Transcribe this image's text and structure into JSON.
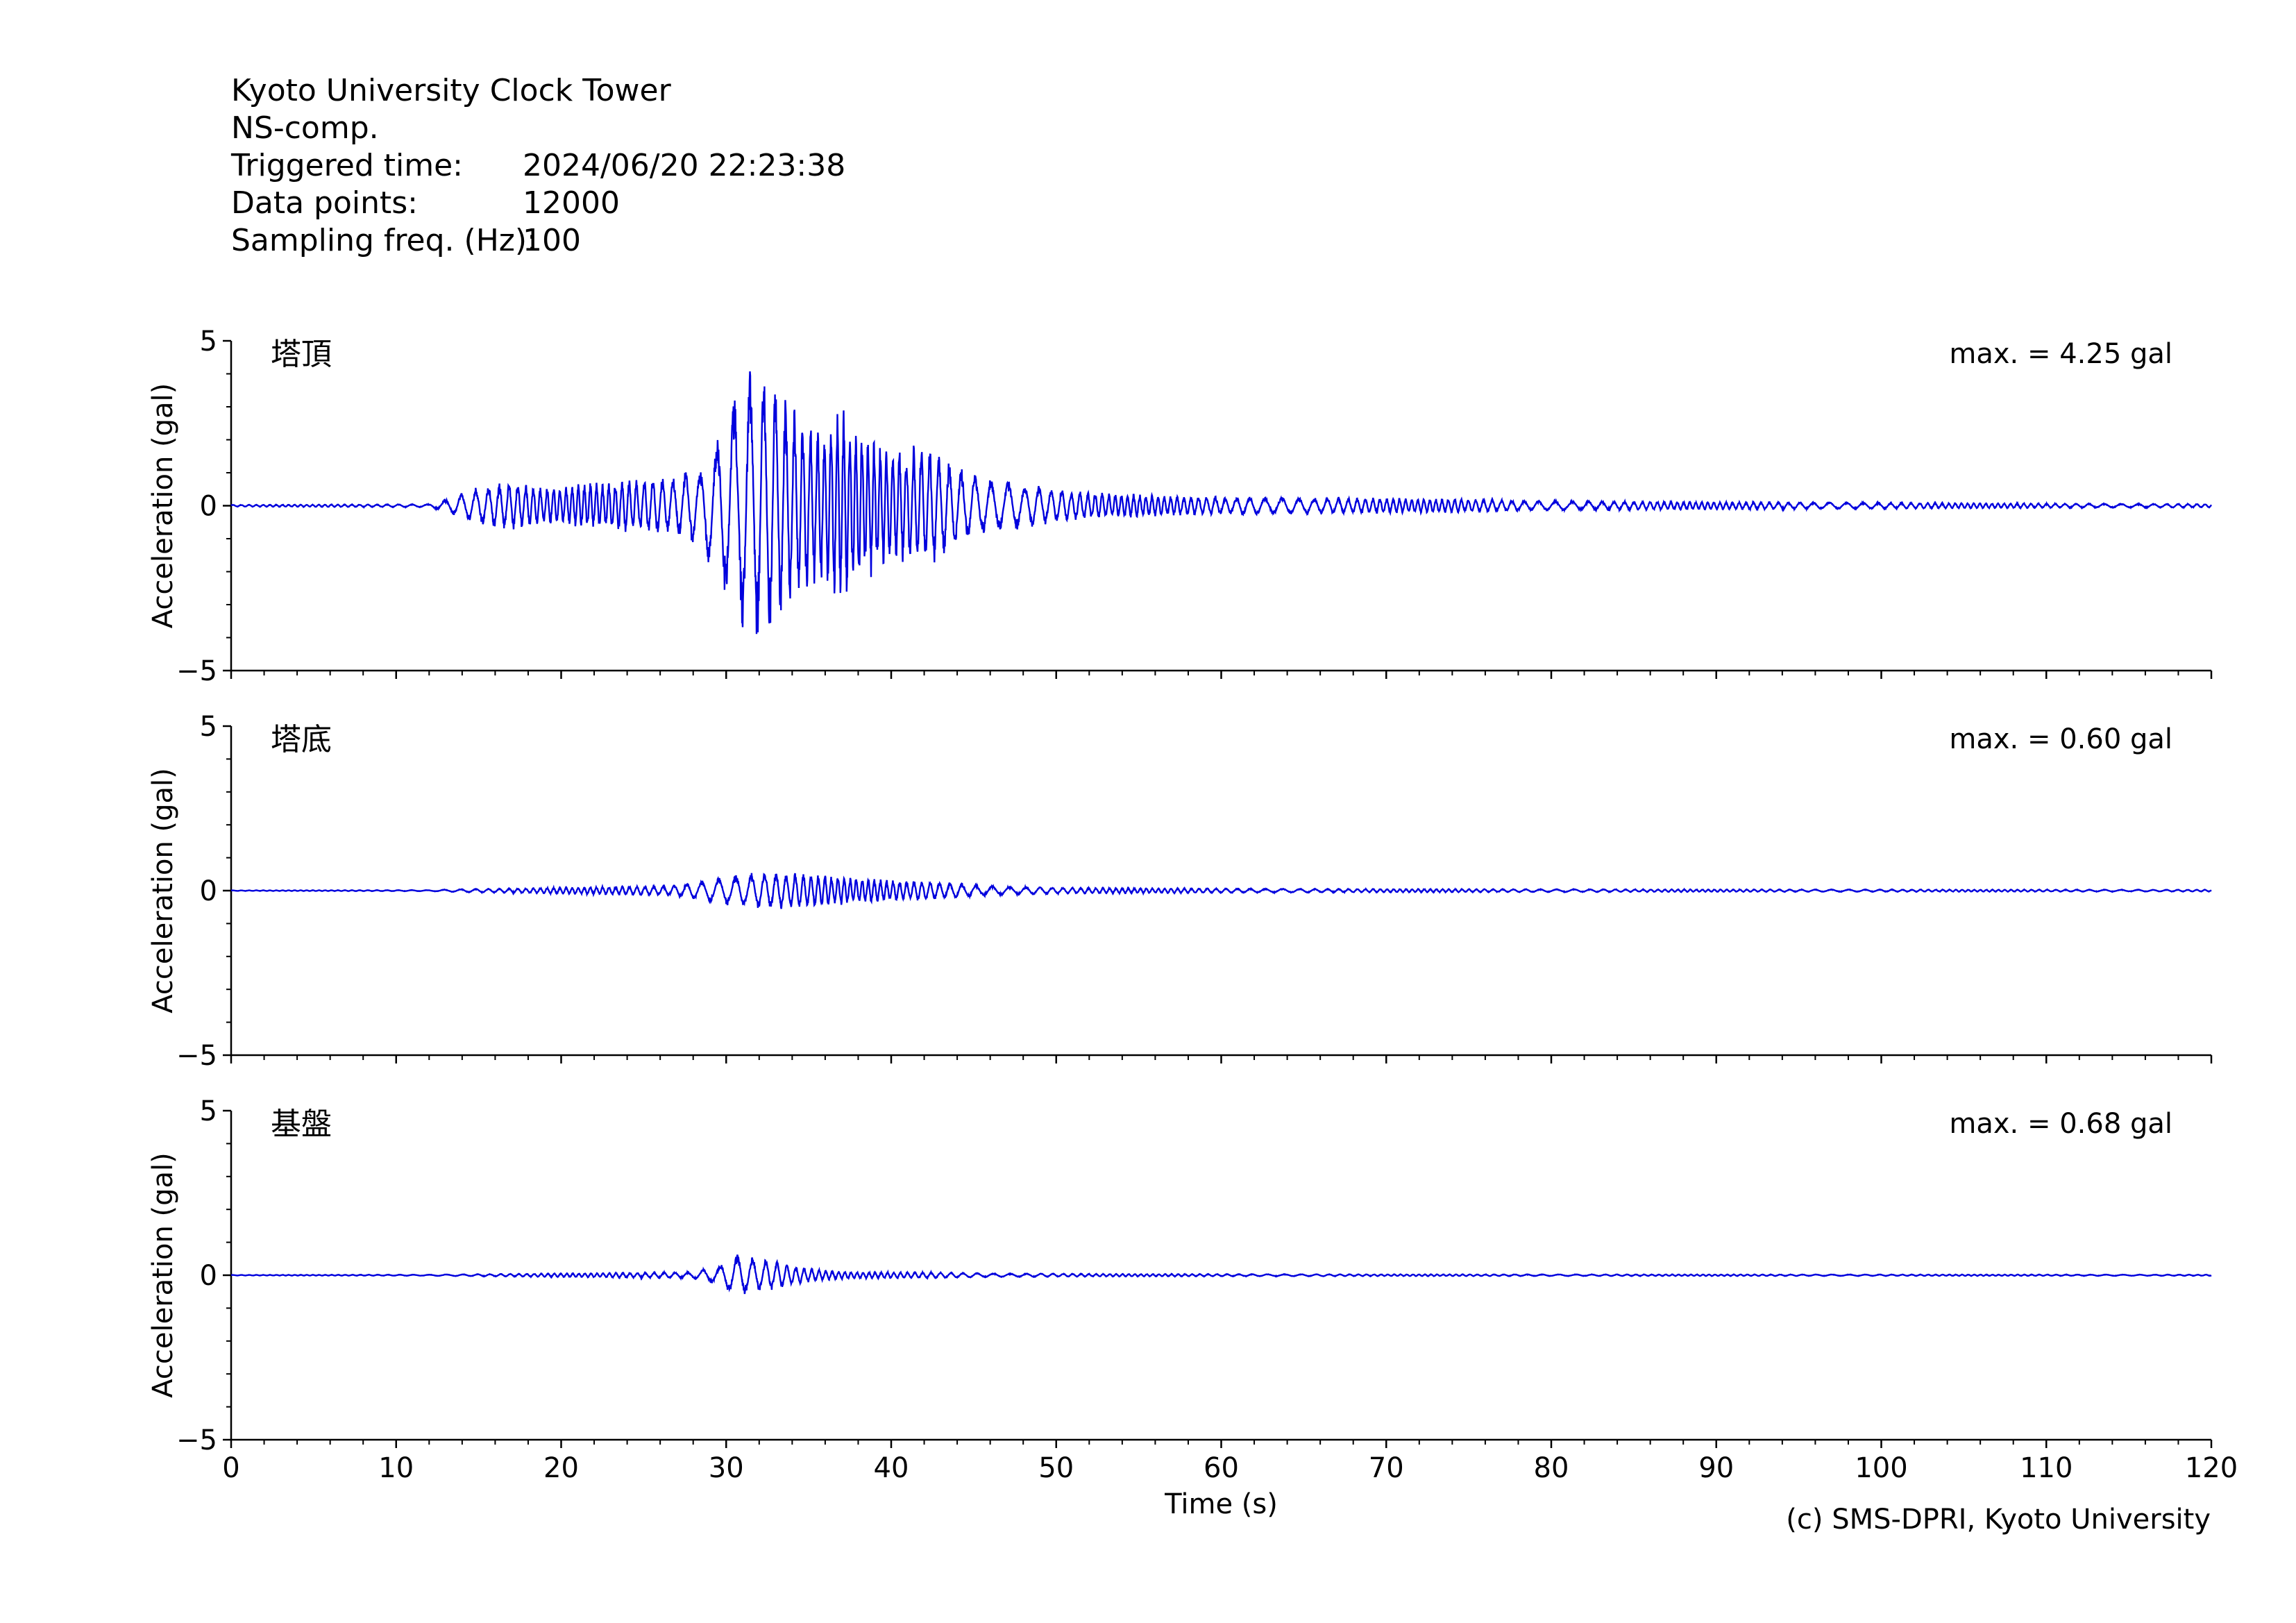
{
  "header": {
    "station": "Kyoto University Clock Tower",
    "component": "NS-comp.",
    "rows": [
      {
        "label": "Triggered time:",
        "value": "2024/06/20 22:23:38"
      },
      {
        "label": "Data points:",
        "value": "12000"
      },
      {
        "label": "Sampling freq. (Hz):",
        "value": "100"
      }
    ]
  },
  "copyright": "(c) SMS-DPRI, Kyoto University",
  "colors": {
    "trace": "#0000dd",
    "axis": "#000000"
  },
  "chart_data": [
    {
      "type": "line",
      "panel_label": "塔頂",
      "max_label": "max. = 4.25 gal",
      "ylabel": "Acceleration (gal)",
      "ylim": [
        -5,
        5
      ],
      "yticks": [
        -5,
        0,
        5
      ],
      "xlim": [
        0,
        120
      ],
      "xticks": [
        0,
        10,
        20,
        30,
        40,
        50,
        60,
        70,
        80,
        90,
        100,
        110,
        120
      ],
      "xlabel": "",
      "envelope": {
        "t": [
          0,
          12,
          13,
          15,
          17,
          19,
          21,
          23,
          25,
          27,
          28.5,
          29.5,
          30.5,
          31.5,
          32.2,
          33,
          34,
          35,
          36,
          37,
          38,
          39,
          40,
          41,
          42.5,
          44,
          45.5,
          47,
          49,
          51,
          53,
          55,
          57,
          60,
          65,
          70,
          75,
          80,
          90,
          100,
          110,
          120
        ],
        "amp": [
          0.03,
          0.05,
          0.2,
          0.6,
          0.75,
          0.55,
          0.65,
          0.75,
          0.85,
          0.9,
          1.3,
          2.3,
          3.4,
          4.2,
          4.25,
          3.7,
          3.0,
          2.6,
          2.4,
          3.0,
          2.4,
          2.1,
          1.7,
          1.8,
          1.9,
          1.2,
          0.9,
          0.8,
          0.6,
          0.45,
          0.4,
          0.35,
          0.3,
          0.28,
          0.26,
          0.24,
          0.2,
          0.15,
          0.12,
          0.1,
          0.07,
          0.06
        ]
      }
    },
    {
      "type": "line",
      "panel_label": "塔底",
      "max_label": "max. = 0.60 gal",
      "ylabel": "Acceleration (gal)",
      "ylim": [
        -5,
        5
      ],
      "yticks": [
        -5,
        0,
        5
      ],
      "xlim": [
        0,
        120
      ],
      "xticks": [
        0,
        10,
        20,
        30,
        40,
        50,
        60,
        70,
        80,
        90,
        100,
        110,
        120
      ],
      "xlabel": "",
      "envelope": {
        "t": [
          0,
          12,
          14,
          18,
          22,
          26,
          28,
          30,
          31.5,
          33,
          35,
          37,
          39,
          42,
          46,
          50,
          56,
          65,
          75,
          90,
          120
        ],
        "amp": [
          0.01,
          0.02,
          0.05,
          0.08,
          0.12,
          0.15,
          0.25,
          0.45,
          0.55,
          0.58,
          0.5,
          0.45,
          0.35,
          0.3,
          0.15,
          0.1,
          0.08,
          0.06,
          0.05,
          0.04,
          0.03
        ]
      }
    },
    {
      "type": "line",
      "panel_label": "基盤",
      "max_label": "max. = 0.68 gal",
      "ylabel": "Acceleration (gal)",
      "ylim": [
        -5,
        5
      ],
      "yticks": [
        -5,
        0,
        5
      ],
      "xlim": [
        0,
        120
      ],
      "xticks": [
        0,
        10,
        20,
        30,
        40,
        50,
        60,
        70,
        80,
        90,
        100,
        110,
        120
      ],
      "xlabel": "Time (s)",
      "envelope": {
        "t": [
          0,
          12,
          16,
          22,
          28,
          29.5,
          30.5,
          31.5,
          32.5,
          34,
          36,
          38,
          42,
          46,
          55,
          70,
          120
        ],
        "amp": [
          0.01,
          0.02,
          0.04,
          0.07,
          0.1,
          0.3,
          0.65,
          0.55,
          0.5,
          0.3,
          0.15,
          0.1,
          0.1,
          0.06,
          0.04,
          0.03,
          0.02
        ]
      }
    }
  ]
}
